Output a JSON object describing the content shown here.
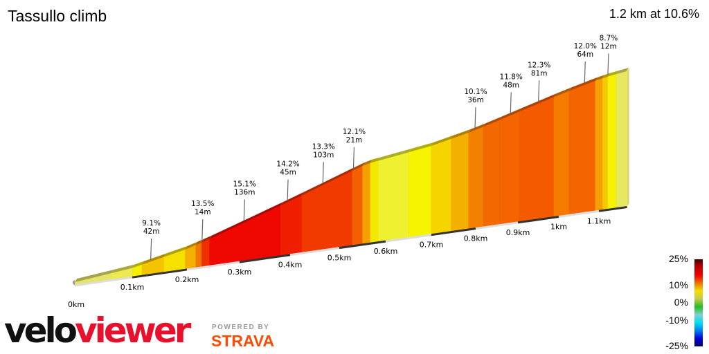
{
  "title": "Tassullo climb",
  "summary": "1.2 km at 10.6%",
  "chart_data": {
    "type": "area",
    "title": "Tassullo climb",
    "subtitle": "1.2 km at 10.6%",
    "x_unit": "km",
    "xlim": [
      0,
      1.17
    ],
    "x_ticks": [
      {
        "value": 0,
        "label": "0km"
      },
      {
        "value": 0.1,
        "label": "0.1km"
      },
      {
        "value": 0.2,
        "label": "0.2km"
      },
      {
        "value": 0.3,
        "label": "0.3km"
      },
      {
        "value": 0.4,
        "label": "0.4km"
      },
      {
        "value": 0.5,
        "label": "0.5km"
      },
      {
        "value": 0.6,
        "label": "0.6km"
      },
      {
        "value": 0.7,
        "label": "0.7km"
      },
      {
        "value": 0.8,
        "label": "0.8km"
      },
      {
        "value": 0.9,
        "label": "0.9km"
      },
      {
        "value": 1.0,
        "label": "1km"
      },
      {
        "value": 1.1,
        "label": "1.1km"
      }
    ],
    "segments": [
      {
        "start": 0,
        "end": 0.063,
        "color": "#e4e46a"
      },
      {
        "start": 0.063,
        "end": 0.101,
        "color": "#ecea50"
      },
      {
        "start": 0.101,
        "end": 0.118,
        "color": "#f6f000"
      },
      {
        "start": 0.118,
        "end": 0.158,
        "color": "#f4c400"
      },
      {
        "start": 0.158,
        "end": 0.197,
        "color": "#f5e000"
      },
      {
        "start": 0.197,
        "end": 0.217,
        "color": "#f4b000"
      },
      {
        "start": 0.217,
        "end": 0.228,
        "color": "#f07800"
      },
      {
        "start": 0.228,
        "end": 0.243,
        "color": "#f03000"
      },
      {
        "start": 0.243,
        "end": 0.381,
        "color": "#ee0800"
      },
      {
        "start": 0.381,
        "end": 0.424,
        "color": "#f01e00"
      },
      {
        "start": 0.424,
        "end": 0.528,
        "color": "#f03a00"
      },
      {
        "start": 0.528,
        "end": 0.55,
        "color": "#f26000"
      },
      {
        "start": 0.55,
        "end": 0.567,
        "color": "#f5a000"
      },
      {
        "start": 0.567,
        "end": 0.584,
        "color": "#f5e800"
      },
      {
        "start": 0.584,
        "end": 0.651,
        "color": "#eef030"
      },
      {
        "start": 0.651,
        "end": 0.7,
        "color": "#f6f400"
      },
      {
        "start": 0.7,
        "end": 0.745,
        "color": "#f5d400"
      },
      {
        "start": 0.745,
        "end": 0.784,
        "color": "#f4b000"
      },
      {
        "start": 0.784,
        "end": 0.818,
        "color": "#f48000"
      },
      {
        "start": 0.818,
        "end": 0.857,
        "color": "#f46800"
      },
      {
        "start": 0.857,
        "end": 0.903,
        "color": "#f46400"
      },
      {
        "start": 0.903,
        "end": 0.988,
        "color": "#f45a00"
      },
      {
        "start": 0.988,
        "end": 1.026,
        "color": "#f47a00"
      },
      {
        "start": 1.026,
        "end": 1.091,
        "color": "#f46400"
      },
      {
        "start": 1.091,
        "end": 1.109,
        "color": "#f5a000"
      },
      {
        "start": 1.109,
        "end": 1.122,
        "color": "#f5c800"
      },
      {
        "start": 1.122,
        "end": 1.143,
        "color": "#f6f200"
      },
      {
        "start": 1.143,
        "end": 1.169,
        "color": "#e8e860"
      }
    ],
    "annotations": [
      {
        "km": 0.135,
        "gradient": "9.1%",
        "length": "42m"
      },
      {
        "km": 0.23,
        "gradient": "13.5%",
        "length": "14m"
      },
      {
        "km": 0.31,
        "gradient": "15.1%",
        "length": "136m"
      },
      {
        "km": 0.396,
        "gradient": "14.2%",
        "length": "45m"
      },
      {
        "km": 0.468,
        "gradient": "13.3%",
        "length": "103m"
      },
      {
        "km": 0.532,
        "gradient": "12.1%",
        "length": "21m"
      },
      {
        "km": 0.8,
        "gradient": "10.1%",
        "length": "36m"
      },
      {
        "km": 0.884,
        "gradient": "11.8%",
        "length": "48m"
      },
      {
        "km": 0.952,
        "gradient": "12.3%",
        "length": "81m"
      },
      {
        "km": 1.066,
        "gradient": "12.0%",
        "length": "64m"
      },
      {
        "km": 1.124,
        "gradient": "8.7%",
        "length": "12m"
      }
    ],
    "legend": {
      "labels": [
        "25%",
        "10%",
        "0%",
        "-10%",
        "-25%"
      ],
      "colors": [
        "#4a0000",
        "#c00000",
        "#f00000",
        "#f07000",
        "#f0e000",
        "#c8c850",
        "#20c020",
        "#80d0d0",
        "#00e0f0",
        "#0080f0",
        "#0000e0",
        "#000060"
      ]
    }
  },
  "branding": {
    "logo_velo": "velo",
    "logo_viewer": "viewer",
    "powered_by": "POWERED BY",
    "strava": "STRAVA"
  }
}
